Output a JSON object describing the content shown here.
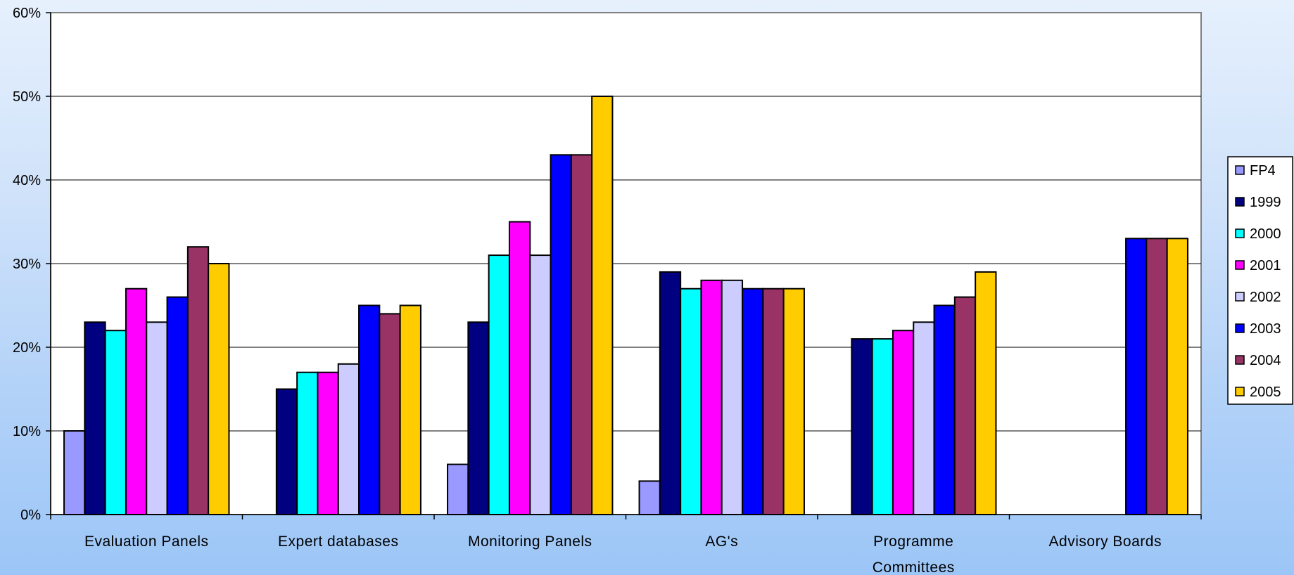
{
  "chart_data": {
    "type": "bar",
    "categories": [
      [
        "Evaluation Panels"
      ],
      [
        "Expert databases"
      ],
      [
        "Monitoring Panels"
      ],
      [
        "AG's"
      ],
      [
        "Programme",
        "Committees"
      ],
      [
        "Advisory Boards"
      ]
    ],
    "series": [
      {
        "name": "FP4",
        "color": "#9999ff",
        "values": [
          10,
          null,
          6,
          4,
          null,
          null
        ]
      },
      {
        "name": "1999",
        "color": "#000080",
        "values": [
          23,
          15,
          23,
          29,
          21,
          null
        ]
      },
      {
        "name": "2000",
        "color": "#00ffff",
        "values": [
          22,
          17,
          31,
          27,
          21,
          null
        ]
      },
      {
        "name": "2001",
        "color": "#ff00ff",
        "values": [
          27,
          17,
          35,
          28,
          22,
          null
        ]
      },
      {
        "name": "2002",
        "color": "#ccccff",
        "values": [
          23,
          18,
          31,
          28,
          23,
          null
        ]
      },
      {
        "name": "2003",
        "color": "#0000ff",
        "values": [
          26,
          25,
          43,
          27,
          25,
          33
        ]
      },
      {
        "name": "2004",
        "color": "#993366",
        "values": [
          32,
          24,
          43,
          27,
          26,
          33
        ]
      },
      {
        "name": "2005",
        "color": "#ffcc00",
        "values": [
          30,
          25,
          50,
          27,
          29,
          33
        ]
      }
    ],
    "y_ticks": [
      "0%",
      "10%",
      "20%",
      "30%",
      "40%",
      "50%",
      "60%"
    ],
    "ylim": [
      0,
      60
    ],
    "grid": true,
    "legend": "right",
    "plot_background": "#ffffff"
  }
}
